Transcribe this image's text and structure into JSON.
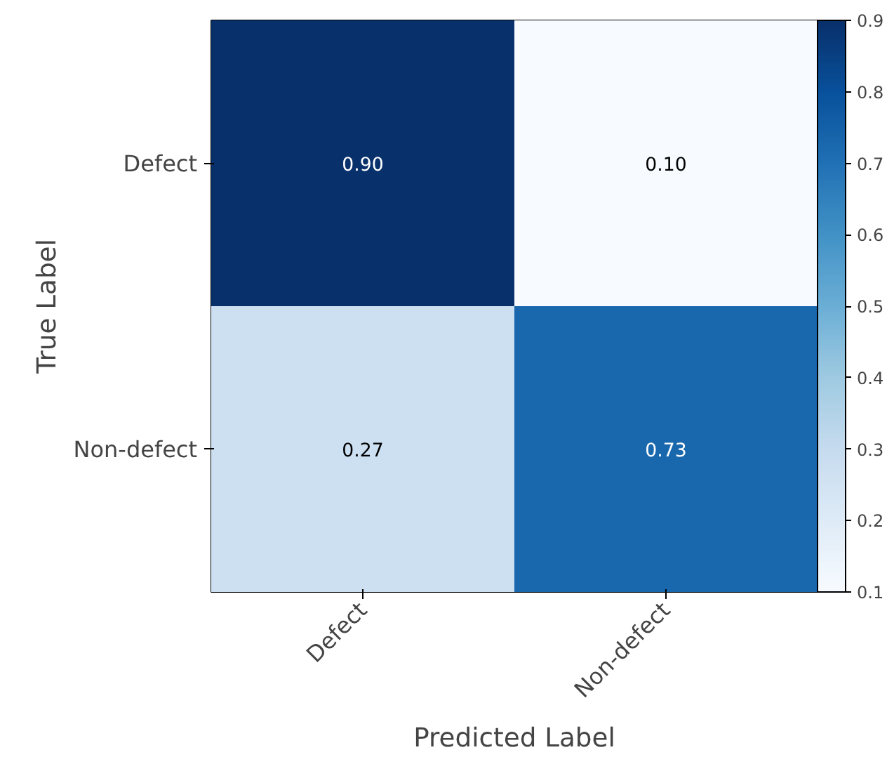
{
  "chart_data": {
    "type": "heatmap",
    "xlabel": "Predicted Label",
    "ylabel": "True Label",
    "categories": [
      "Defect",
      "Non-defect"
    ],
    "y_categories": [
      "Defect",
      "Non-defect"
    ],
    "cells": [
      [
        0.9,
        0.1
      ],
      [
        0.27,
        0.73
      ]
    ],
    "cell_labels": [
      [
        "0.90",
        "0.10"
      ],
      [
        "0.27",
        "0.73"
      ]
    ],
    "clim": [
      0.1,
      0.9
    ],
    "cticks": [
      0.1,
      0.2,
      0.3,
      0.4,
      0.5,
      0.6,
      0.7,
      0.8,
      0.9
    ]
  }
}
